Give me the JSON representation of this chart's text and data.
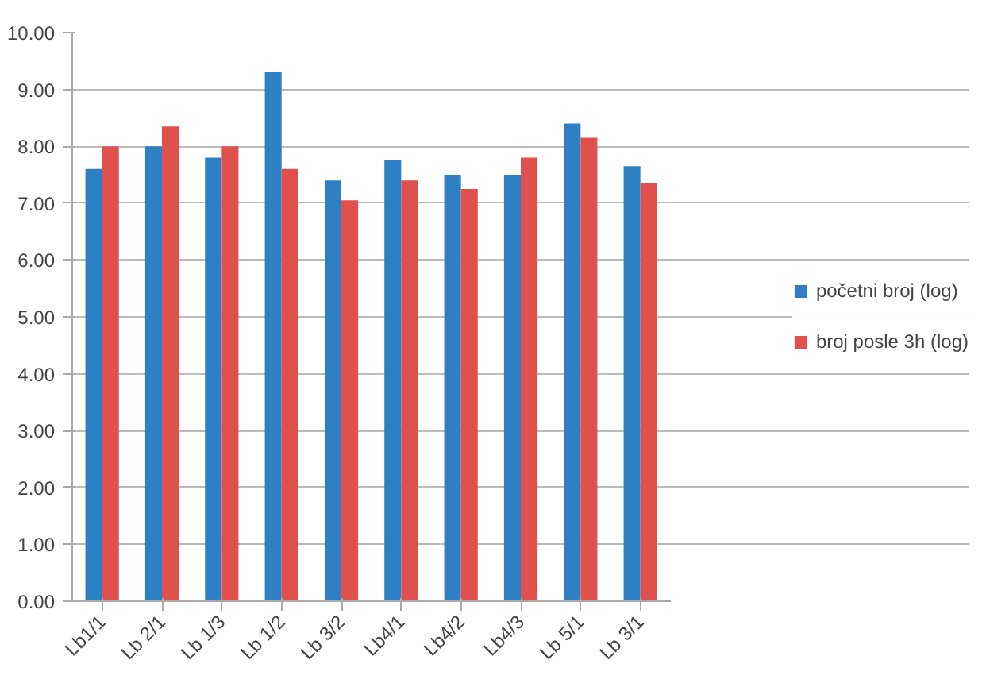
{
  "chart_data": {
    "type": "bar",
    "categories": [
      "Lb1/1",
      "Lb 2/1",
      "Lb 1/3",
      "Lb 1/2",
      "Lb 3/2",
      "Lb4/1",
      "Lb4/2",
      "Lb4/3",
      "Lb 5/1",
      "Lb 3/1"
    ],
    "series": [
      {
        "name": "početni broj (log)",
        "color": "#2e7fc4",
        "values": [
          7.6,
          8.0,
          7.8,
          9.3,
          7.4,
          7.75,
          7.5,
          7.5,
          8.4,
          7.65
        ]
      },
      {
        "name": "broj posle 3h (log)",
        "color": "#e0504d",
        "values": [
          8.0,
          8.35,
          8.0,
          7.6,
          7.05,
          7.4,
          7.25,
          7.8,
          8.15,
          7.35
        ]
      }
    ],
    "ylim": [
      0,
      10
    ],
    "yticks": [
      {
        "value": 0,
        "label": "0.00"
      },
      {
        "value": 1,
        "label": "1.00"
      },
      {
        "value": 2,
        "label": "2.00"
      },
      {
        "value": 3,
        "label": "3.00"
      },
      {
        "value": 4,
        "label": "4.00"
      },
      {
        "value": 5,
        "label": "5.00"
      },
      {
        "value": 6,
        "label": "6.00"
      },
      {
        "value": 7,
        "label": "7.00"
      },
      {
        "value": 8,
        "label": "8.00"
      },
      {
        "value": 9,
        "label": "9.00"
      },
      {
        "value": 10,
        "label": "10.00"
      }
    ],
    "grid": "y",
    "legend": "right"
  }
}
